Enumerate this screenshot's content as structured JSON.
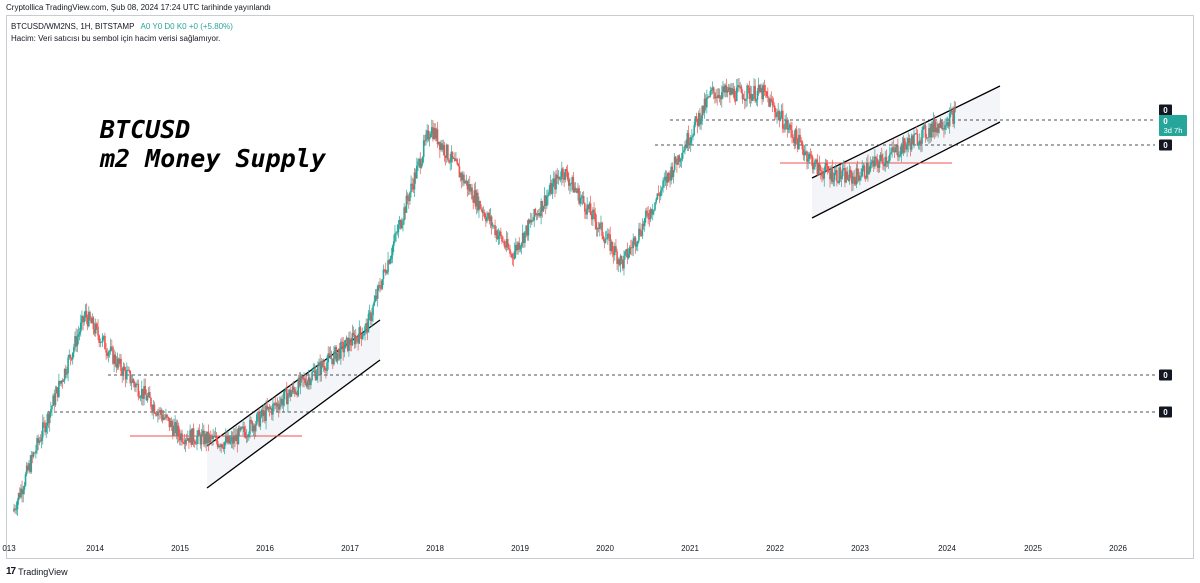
{
  "header": {
    "published": "Cryptollica TradingView.com, Şub 08, 2024 17:24 UTC tarihinde yayınlandı"
  },
  "legend": {
    "symbol": "BTCUSD/WM2NS, 1H, BITSTAMP",
    "ohlc": "A0 Y0 D0 K0 +0 (+5.80%)",
    "volume_note": "Hacim: Veri satıcısı bu sembol için hacim verisi sağlamıyor."
  },
  "annotation": {
    "line1": "BTCUSD",
    "line2": "m2 Money Supply"
  },
  "price_labels": {
    "top": "0",
    "current": "0",
    "countdown": "3d 7h",
    "mid": "0",
    "low1": "0",
    "low2": "0"
  },
  "footer": {
    "brand": "TradingView"
  },
  "colors": {
    "up": "#26a69a",
    "down": "#ef5350",
    "current_price": "#26a69a",
    "support_line": "#ef5350",
    "channel": "#000000"
  },
  "chart_data": {
    "type": "candlestick",
    "title": "",
    "x_axis_ticks": [
      "013",
      "2014",
      "2015",
      "2016",
      "2017",
      "2018",
      "2019",
      "2020",
      "2021",
      "2022",
      "2023",
      "2024",
      "2025",
      "2026"
    ],
    "x_axis_range": [
      2013.0,
      2026.5
    ],
    "y_axis": "ratio BTCUSD / M2 (log scale, labels show 0)",
    "log_scale": true,
    "grid": false,
    "legend": "top-left",
    "approximate_path_relative": [
      {
        "date": 2013.05,
        "level": 0.02
      },
      {
        "date": 2013.9,
        "level": 0.48
      },
      {
        "date": 2014.3,
        "level": 0.36
      },
      {
        "date": 2015.0,
        "level": 0.2
      },
      {
        "date": 2015.6,
        "level": 0.18
      },
      {
        "date": 2016.5,
        "level": 0.33
      },
      {
        "date": 2017.2,
        "level": 0.45
      },
      {
        "date": 2017.95,
        "level": 0.92
      },
      {
        "date": 2018.9,
        "level": 0.62
      },
      {
        "date": 2019.5,
        "level": 0.82
      },
      {
        "date": 2020.2,
        "level": 0.6
      },
      {
        "date": 2021.25,
        "level": 1.0
      },
      {
        "date": 2021.85,
        "level": 1.0
      },
      {
        "date": 2022.5,
        "level": 0.82
      },
      {
        "date": 2022.9,
        "level": 0.8
      },
      {
        "date": 2024.1,
        "level": 0.95
      }
    ]
  }
}
